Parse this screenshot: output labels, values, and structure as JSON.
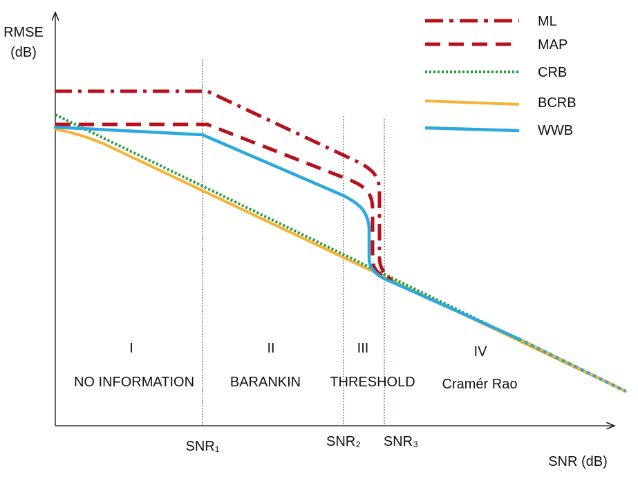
{
  "diagram": {
    "y_axis_label_line1": "RMSE",
    "y_axis_label_line2": "(dB)",
    "x_axis_label": "SNR (dB)",
    "thresholds": [
      {
        "name": "snr1",
        "label": "SNR₁"
      },
      {
        "name": "snr2",
        "label": "SNR₂"
      },
      {
        "name": "snr3",
        "label": "SNR₃"
      }
    ],
    "regions": [
      {
        "name": "region-i",
        "numeral": "I",
        "title": "NO INFORMATION"
      },
      {
        "name": "region-ii",
        "numeral": "II",
        "title": "BARANKIN"
      },
      {
        "name": "region-iii",
        "numeral": "III",
        "title": "THRESHOLD"
      },
      {
        "name": "region-iv",
        "numeral": "IV",
        "title": "Cramér Rao"
      }
    ],
    "legend": [
      {
        "name": "ml",
        "label": "ML",
        "color": "#b5121b",
        "style": "dash-dot"
      },
      {
        "name": "map",
        "label": "MAP",
        "color": "#b5121b",
        "style": "dashed"
      },
      {
        "name": "crb",
        "label": "CRB",
        "color": "#1e9e3a",
        "style": "dotted"
      },
      {
        "name": "bcrb",
        "label": "BCRB",
        "color": "#f5b233",
        "style": "solid"
      },
      {
        "name": "wwb",
        "label": "WWB",
        "color": "#2aa8e0",
        "style": "solid"
      }
    ]
  }
}
